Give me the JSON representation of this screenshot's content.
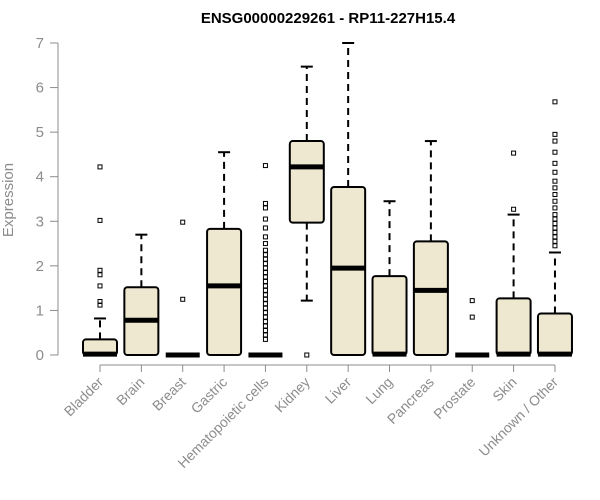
{
  "chart_data": {
    "type": "boxplot",
    "title": "ENSG00000229261 - RP11-227H15.4",
    "ylabel": "Expression",
    "xlabel": "",
    "ylim": [
      0,
      7
    ],
    "yticks": [
      0,
      1,
      2,
      3,
      4,
      5,
      6,
      7
    ],
    "grid": false,
    "legend": "none",
    "box_fill": "#efe8d0",
    "median_color": "#000000",
    "categories": [
      "Bladder",
      "Brain",
      "Breast",
      "Gastric",
      "Hematopoietic cells",
      "Kidney",
      "Liver",
      "Lung",
      "Pancreas",
      "Prostate",
      "Skin",
      "Unknown / Other"
    ],
    "boxes": [
      {
        "category": "Bladder",
        "whisker_low": 0,
        "q1": 0,
        "median": 0.02,
        "q3": 0.35,
        "whisker_high": 0.82,
        "outliers": [
          1.12,
          1.2,
          1.55,
          1.8,
          1.9,
          3.02,
          4.22
        ]
      },
      {
        "category": "Brain",
        "whisker_low": 0,
        "q1": 0,
        "median": 0.78,
        "q3": 1.52,
        "whisker_high": 2.7,
        "outliers": []
      },
      {
        "category": "Breast",
        "whisker_low": 0,
        "q1": 0,
        "median": 0,
        "q3": 0,
        "whisker_high": 0,
        "outliers": [
          1.25,
          2.98
        ]
      },
      {
        "category": "Gastric",
        "whisker_low": 0,
        "q1": 0,
        "median": 1.55,
        "q3": 2.83,
        "whisker_high": 4.55,
        "outliers": []
      },
      {
        "category": "Hematopoietic cells",
        "whisker_low": 0,
        "q1": 0,
        "median": 0,
        "q3": 0,
        "whisker_high": 0,
        "outliers": [
          0.35,
          0.45,
          0.55,
          0.65,
          0.75,
          0.85,
          0.95,
          1.05,
          1.15,
          1.25,
          1.35,
          1.45,
          1.55,
          1.65,
          1.75,
          1.85,
          1.95,
          2.05,
          2.15,
          2.25,
          2.35,
          2.5,
          2.65,
          2.85,
          3.05,
          3.3,
          3.4,
          4.25
        ]
      },
      {
        "category": "Kidney",
        "whisker_low": 1.22,
        "q1": 2.97,
        "median": 4.22,
        "q3": 4.8,
        "whisker_high": 6.47,
        "outliers": [
          0
        ]
      },
      {
        "category": "Liver",
        "whisker_low": 0,
        "q1": 0,
        "median": 1.95,
        "q3": 3.77,
        "whisker_high": 7.0,
        "outliers": []
      },
      {
        "category": "Lung",
        "whisker_low": 0,
        "q1": 0,
        "median": 0.02,
        "q3": 1.77,
        "whisker_high": 3.45,
        "outliers": []
      },
      {
        "category": "Pancreas",
        "whisker_low": 0,
        "q1": 0,
        "median": 1.45,
        "q3": 2.55,
        "whisker_high": 4.8,
        "outliers": []
      },
      {
        "category": "Prostate",
        "whisker_low": 0,
        "q1": 0,
        "median": 0,
        "q3": 0,
        "whisker_high": 0,
        "outliers": [
          0.85,
          1.22
        ]
      },
      {
        "category": "Skin",
        "whisker_low": 0,
        "q1": 0,
        "median": 0.02,
        "q3": 1.27,
        "whisker_high": 3.15,
        "outliers": [
          3.27,
          4.53
        ]
      },
      {
        "category": "Unknown / Other",
        "whisker_low": 0,
        "q1": 0,
        "median": 0.02,
        "q3": 0.93,
        "whisker_high": 2.3,
        "outliers": [
          2.45,
          2.55,
          2.65,
          2.75,
          2.85,
          2.95,
          3.05,
          3.15,
          3.3,
          3.45,
          3.6,
          3.75,
          3.9,
          4.1,
          4.3,
          4.55,
          4.8,
          4.95,
          5.68
        ]
      }
    ]
  }
}
